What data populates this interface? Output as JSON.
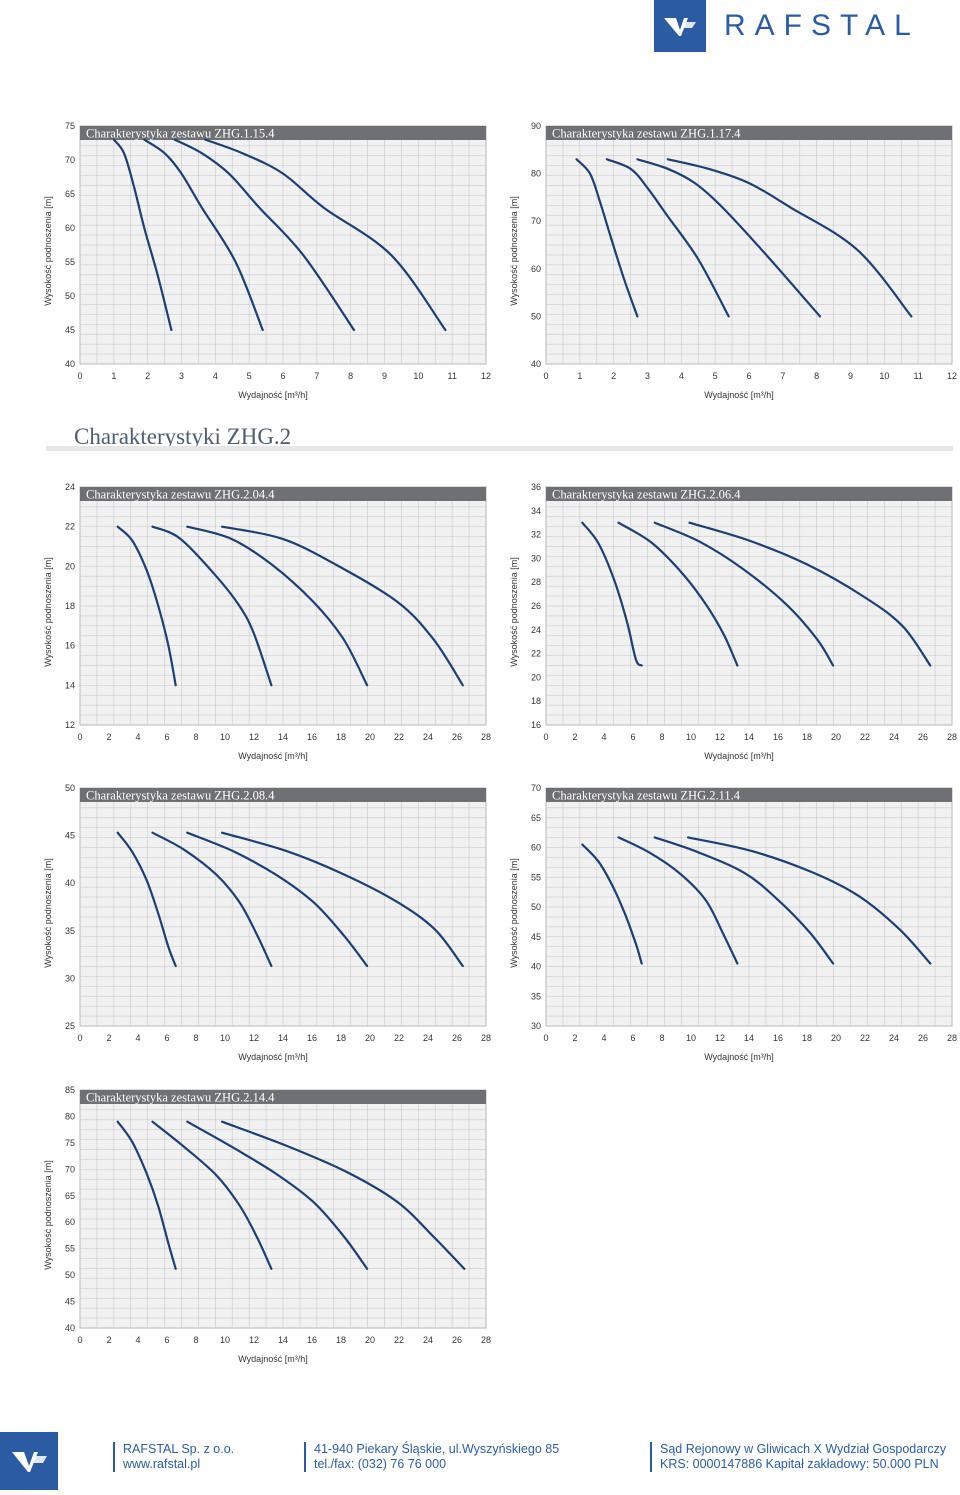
{
  "brand": {
    "name": "RAFSTAL",
    "accent": "#2b5ca3"
  },
  "section": {
    "title": "Charakterystyki ZHG.2"
  },
  "chart_data": [
    {
      "type": "line",
      "title": "Charakterystyka zestawu ZHG.1.15.4",
      "xlabel": "Wydajność [m³/h]",
      "ylabel": "Wysokość podnoszenia [m]",
      "xlim": [
        0,
        12
      ],
      "ylim": [
        40,
        75
      ],
      "xticks": [
        0,
        1,
        2,
        3,
        4,
        5,
        6,
        7,
        8,
        9,
        10,
        11,
        12
      ],
      "yticks": [
        40,
        45,
        50,
        55,
        60,
        65,
        70,
        75
      ],
      "grid": true,
      "series": [
        {
          "x": [
            1,
            1.3,
            1.6,
            1.9,
            2.3,
            2.7
          ],
          "y": [
            73,
            71,
            66,
            60,
            53,
            45
          ]
        },
        {
          "x": [
            1.9,
            2.5,
            3,
            3.6,
            4.6,
            5.4
          ],
          "y": [
            73,
            71,
            68,
            63,
            55,
            45
          ]
        },
        {
          "x": [
            2.8,
            3.6,
            4.4,
            5.3,
            6.6,
            8.1
          ],
          "y": [
            73,
            71,
            68,
            63,
            56,
            45
          ]
        },
        {
          "x": [
            3.7,
            4.8,
            6,
            7.2,
            9.2,
            10.8
          ],
          "y": [
            73,
            71,
            68,
            63,
            56,
            45
          ]
        }
      ]
    },
    {
      "type": "line",
      "title": "Charakterystyka zestawu ZHG.1.17.4",
      "xlabel": "Wydajność [m³/h]",
      "ylabel": "Wysokość podnoszenia [m]",
      "xlim": [
        0,
        12
      ],
      "ylim": [
        40,
        90
      ],
      "xticks": [
        0,
        1,
        2,
        3,
        4,
        5,
        6,
        7,
        8,
        9,
        10,
        11,
        12
      ],
      "yticks": [
        40,
        50,
        60,
        70,
        80,
        90
      ],
      "grid": true,
      "series": [
        {
          "x": [
            0.9,
            1.3,
            1.6,
            1.9,
            2.3,
            2.7
          ],
          "y": [
            83,
            80,
            74,
            67,
            58,
            50
          ]
        },
        {
          "x": [
            1.8,
            2.5,
            3,
            3.6,
            4.5,
            5.4
          ],
          "y": [
            83,
            81,
            77,
            71,
            62,
            50
          ]
        },
        {
          "x": [
            2.7,
            3.6,
            4.4,
            5.2,
            6.5,
            8.1
          ],
          "y": [
            83,
            81,
            78,
            73,
            63,
            50
          ]
        },
        {
          "x": [
            3.6,
            4.8,
            6,
            7.2,
            9.2,
            10.8
          ],
          "y": [
            83,
            81,
            78,
            73,
            64,
            50
          ]
        }
      ]
    },
    {
      "type": "line",
      "title": "Charakterystyka zestawu ZHG.2.04.4",
      "xlabel": "Wydajność [m³/h]",
      "ylabel": "Wysokość podnoszenia [m]",
      "xlim": [
        0,
        28
      ],
      "ylim": [
        12,
        24
      ],
      "xticks": [
        0,
        2,
        4,
        6,
        8,
        10,
        12,
        14,
        16,
        18,
        20,
        22,
        24,
        26,
        28
      ],
      "yticks": [
        12,
        14,
        16,
        18,
        20,
        22,
        24
      ],
      "grid": true,
      "series": [
        {
          "x": [
            2.6,
            3.6,
            4.6,
            5.4,
            6.1,
            6.6
          ],
          "y": [
            22,
            21.3,
            19.8,
            18,
            16,
            14
          ]
        },
        {
          "x": [
            5,
            6.9,
            9.4,
            11,
            12,
            13.2
          ],
          "y": [
            22,
            21.4,
            19.5,
            18,
            16.6,
            14
          ]
        },
        {
          "x": [
            7.4,
            10.4,
            13.2,
            16.1,
            18.2,
            19.8
          ],
          "y": [
            22,
            21.4,
            20.1,
            18.2,
            16.3,
            14
          ]
        },
        {
          "x": [
            9.8,
            13.9,
            17.6,
            21.9,
            24.4,
            26.4
          ],
          "y": [
            22,
            21.4,
            20.1,
            18.2,
            16.3,
            14
          ]
        }
      ]
    },
    {
      "type": "line",
      "title": "Charakterystyka zestawu ZHG.2.06.4",
      "xlabel": "Wydajność [m³/h]",
      "ylabel": "Wysokość podnoszenia [m]",
      "xlim": [
        0,
        28
      ],
      "ylim": [
        16,
        36
      ],
      "xticks": [
        0,
        2,
        4,
        6,
        8,
        10,
        12,
        14,
        16,
        18,
        20,
        22,
        24,
        26,
        28
      ],
      "yticks": [
        16,
        18,
        20,
        22,
        24,
        26,
        28,
        30,
        32,
        34,
        36
      ],
      "grid": true,
      "series": [
        {
          "x": [
            2.5,
            3.6,
            4.7,
            5.6,
            6.2,
            6.6
          ],
          "y": [
            33,
            31.3,
            28.2,
            24.6,
            21.5,
            21
          ]
        },
        {
          "x": [
            5,
            7.3,
            9.5,
            11.1,
            12.3,
            13.2
          ],
          "y": [
            33,
            31.3,
            28.6,
            26,
            23.5,
            21
          ]
        },
        {
          "x": [
            7.5,
            10.6,
            13.6,
            16.6,
            18.7,
            19.8
          ],
          "y": [
            33,
            31.4,
            29.1,
            26.1,
            23.2,
            21
          ]
        },
        {
          "x": [
            9.9,
            14,
            18,
            21.9,
            24.6,
            26.5
          ],
          "y": [
            33,
            31.5,
            29.5,
            26.8,
            24.3,
            21
          ]
        }
      ]
    },
    {
      "type": "line",
      "title": "Charakterystyka zestawu ZHG.2.08.4",
      "xlabel": "Wydajność [m³/h]",
      "ylabel": "Wysokość podnoszenia [m]",
      "xlim": [
        0,
        28
      ],
      "ylim": [
        25,
        50
      ],
      "xticks": [
        0,
        2,
        4,
        6,
        8,
        10,
        12,
        14,
        16,
        18,
        20,
        22,
        24,
        26,
        28
      ],
      "yticks": [
        25,
        30,
        35,
        40,
        45,
        50
      ],
      "grid": true,
      "series": [
        {
          "x": [
            2.6,
            3.6,
            4.6,
            5.4,
            6.1,
            6.6
          ],
          "y": [
            45.3,
            43.3,
            40.3,
            36.8,
            33.3,
            31.3
          ]
        },
        {
          "x": [
            5,
            7.2,
            9.4,
            11,
            12.2,
            13.2
          ],
          "y": [
            45.3,
            43.5,
            40.9,
            38,
            34.6,
            31.3
          ]
        },
        {
          "x": [
            7.4,
            10.5,
            13.5,
            16.1,
            18.2,
            19.8
          ],
          "y": [
            45.3,
            43.4,
            40.9,
            38,
            34.5,
            31.3
          ]
        },
        {
          "x": [
            9.8,
            14.2,
            18.1,
            21.9,
            24.5,
            26.4
          ],
          "y": [
            45.3,
            43.4,
            41,
            38,
            35.1,
            31.3
          ]
        }
      ]
    },
    {
      "type": "line",
      "title": "Charakterystyka zestawu ZHG.2.11.4",
      "xlabel": "Wydajność [m³/h]",
      "ylabel": "Wysokość podnoszenia [m]",
      "xlim": [
        0,
        28
      ],
      "ylim": [
        30,
        70
      ],
      "xticks": [
        0,
        2,
        4,
        6,
        8,
        10,
        12,
        14,
        16,
        18,
        20,
        22,
        24,
        26,
        28
      ],
      "yticks": [
        30,
        35,
        40,
        45,
        50,
        55,
        60,
        65,
        70
      ],
      "grid": true,
      "series": [
        {
          "x": [
            2.5,
            3.6,
            4.6,
            5.5,
            6.2,
            6.6
          ],
          "y": [
            60.5,
            57.7,
            53.5,
            48.5,
            43.8,
            40.5
          ]
        },
        {
          "x": [
            5,
            7.1,
            9.2,
            11,
            12.2,
            13.2
          ],
          "y": [
            61.7,
            59.2,
            55.7,
            51.2,
            45.6,
            40.5
          ]
        },
        {
          "x": [
            7.5,
            10.5,
            13.7,
            16,
            18.2,
            19.8
          ],
          "y": [
            61.7,
            59.2,
            55.7,
            51.2,
            45.7,
            40.5
          ]
        },
        {
          "x": [
            9.8,
            14.2,
            18.4,
            21.6,
            24.4,
            26.5
          ],
          "y": [
            61.7,
            59.4,
            55.8,
            51.8,
            46.2,
            40.5
          ]
        }
      ]
    },
    {
      "type": "line",
      "title": "Charakterystyka zestawu ZHG.2.14.4",
      "xlabel": "Wydajność [m³/h]",
      "ylabel": "Wysokość podnoszenia [m]",
      "xlim": [
        0,
        28
      ],
      "ylim": [
        40,
        85
      ],
      "xticks": [
        0,
        2,
        4,
        6,
        8,
        10,
        12,
        14,
        16,
        18,
        20,
        22,
        24,
        26,
        28
      ],
      "yticks": [
        40,
        45,
        50,
        55,
        60,
        65,
        70,
        75,
        80,
        85
      ],
      "grid": true,
      "series": [
        {
          "x": [
            2.6,
            3.6,
            4.6,
            5.4,
            6.1,
            6.6
          ],
          "y": [
            79,
            75.2,
            69.2,
            63,
            56,
            51.2
          ]
        },
        {
          "x": [
            5,
            7.2,
            9.4,
            11,
            12.2,
            13.2
          ],
          "y": [
            79,
            74.2,
            68.9,
            63.2,
            57.2,
            51.2
          ]
        },
        {
          "x": [
            7.4,
            10.5,
            13.5,
            16.1,
            18.2,
            19.8
          ],
          "y": [
            79,
            74.2,
            69.2,
            63.8,
            57.3,
            51.2
          ]
        },
        {
          "x": [
            9.8,
            14.2,
            18.4,
            21.9,
            24.4,
            26.5
          ],
          "y": [
            79,
            74.5,
            69.5,
            63.8,
            57.2,
            51.2
          ]
        }
      ]
    }
  ],
  "footer": {
    "company": "RAFSTAL Sp. z o.o.",
    "website": "www.rafstal.pl",
    "address": "41-940 Piekary Śląskie, ul.Wyszyńskiego 85",
    "phone": "tel./fax: (032) 76 76 000",
    "court": "Sąd Rejonowy w Gliwicach X Wydział Gospodarczy",
    "krs": "KRS: 0000147886 Kapitał zakładowy: 50.000 PLN"
  }
}
